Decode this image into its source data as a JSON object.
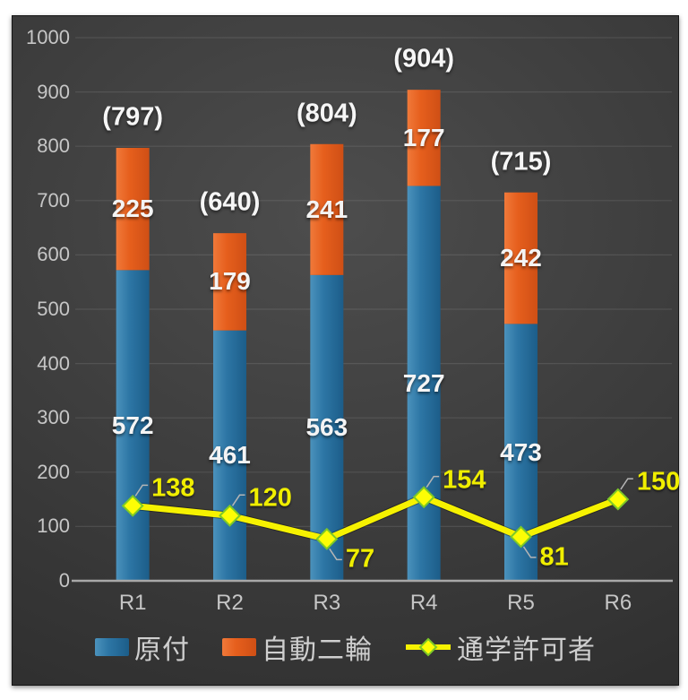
{
  "chart_data": {
    "type": "bar",
    "subtype": "stacked-bars-with-line-overlay",
    "title": "",
    "xlabel": "",
    "ylabel": "",
    "categories": [
      "R1",
      "R2",
      "R3",
      "R4",
      "R5",
      "R6"
    ],
    "series": [
      {
        "name": "原付",
        "type": "bar",
        "stacked": true,
        "color": "#2d76a5",
        "values": [
          572,
          461,
          563,
          727,
          473,
          null
        ]
      },
      {
        "name": "自動二輪",
        "type": "bar",
        "stacked": true,
        "color": "#e8611f",
        "values": [
          225,
          179,
          241,
          177,
          242,
          null
        ]
      },
      {
        "name": "通学許可者",
        "type": "line",
        "marker": "diamond",
        "color": "#f6f200",
        "marker_fill": "#fdfd05",
        "marker_stroke": "#7ec926",
        "values": [
          138,
          120,
          77,
          154,
          81,
          150
        ],
        "label_side": [
          "above",
          "above",
          "below",
          "above",
          "below",
          "above"
        ]
      }
    ],
    "totals": [
      797,
      640,
      804,
      904,
      715,
      null
    ],
    "totals_format": "({value})",
    "ylim": [
      0,
      1000
    ],
    "ytick_interval": 100,
    "grid": true,
    "legend_position": "bottom",
    "colors": {
      "plot_background": "#3d3d3d",
      "gridline": "#555555",
      "axis_line": "#a8a8a8",
      "axis_text": "#c6c6c6",
      "bar_label_text": "#f4f4f4",
      "line_label_text": "#f0ee00",
      "callout": "#b5b5b5",
      "page_background": "#ffffff"
    }
  }
}
